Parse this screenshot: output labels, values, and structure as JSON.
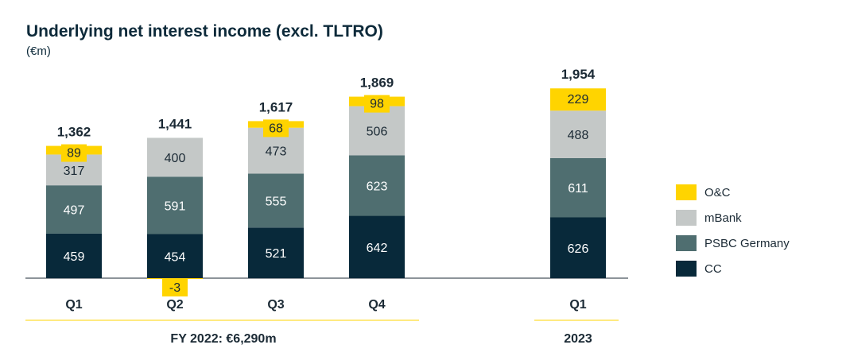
{
  "title": "Underlying net interest income (excl. TLTRO)",
  "subtitle": "(€m)",
  "chart_data": {
    "type": "bar",
    "stacked": true,
    "categories": [
      "Q1",
      "Q2",
      "Q3",
      "Q4",
      "Q1"
    ],
    "series": [
      {
        "name": "CC",
        "color": "#08293a",
        "values": [
          459,
          454,
          521,
          642,
          626
        ]
      },
      {
        "name": "PSBC Germany",
        "color": "#4f6e70",
        "values": [
          497,
          591,
          555,
          623,
          611
        ]
      },
      {
        "name": "mBank",
        "color": "#c4c8c7",
        "values": [
          317,
          400,
          473,
          506,
          488
        ]
      },
      {
        "name": "O&C",
        "color": "#ffd400",
        "values": [
          89,
          -3,
          68,
          98,
          229
        ]
      }
    ],
    "totals": [
      "1,362",
      "1,441",
      "1,617",
      "1,869",
      "1,954"
    ],
    "period_labels": [
      "FY 2022:  €6,290m",
      "2023"
    ],
    "legend_position": "right",
    "grid": false
  },
  "legend": [
    {
      "label": "O&C",
      "color": "#ffd400"
    },
    {
      "label": "mBank",
      "color": "#c4c8c7"
    },
    {
      "label": "PSBC Germany",
      "color": "#4f6e70"
    },
    {
      "label": "CC",
      "color": "#08293a"
    }
  ]
}
